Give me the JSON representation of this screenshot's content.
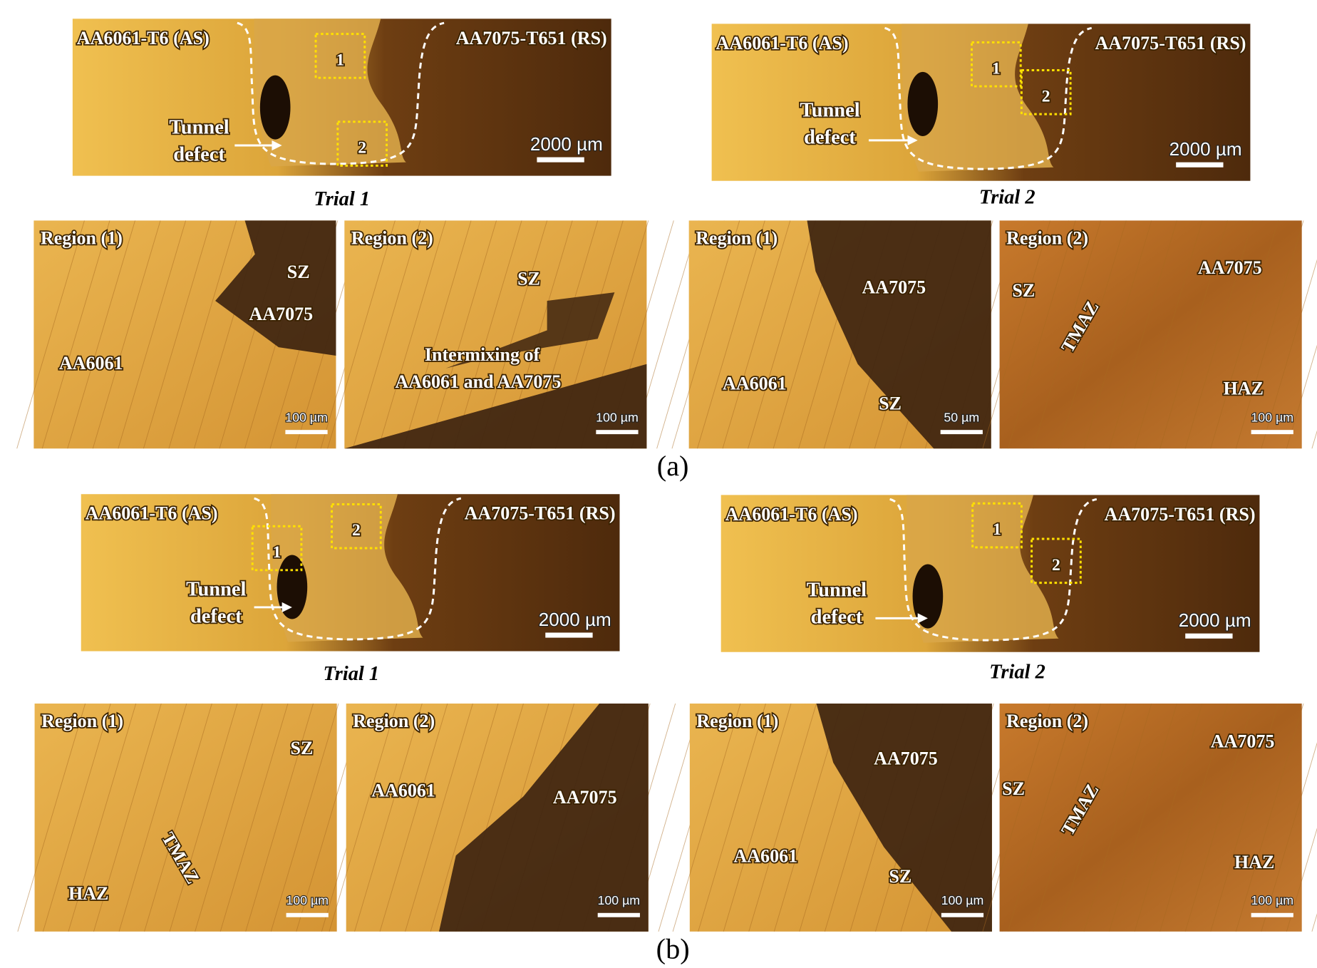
{
  "panels": [
    {
      "label": "(a)",
      "trials": [
        {
          "caption": "Trial 1",
          "macro": {
            "left": "AA6061-T6 (AS)",
            "right": "AA7075-T651 (RS)",
            "defect": [
              "Tunnel",
              "defect"
            ],
            "scale": "2000 µm",
            "boxes": [
              "1",
              "2"
            ]
          },
          "regions": [
            {
              "title": "Region (1)",
              "labels": [
                "SZ",
                "AA7075",
                "AA6061"
              ],
              "scale": "100 µm"
            },
            {
              "title": "Region (2)",
              "labels": [
                "SZ",
                "Intermixing of",
                "AA6061 and AA7075"
              ],
              "scale": "100 µm"
            }
          ]
        },
        {
          "caption": "Trial 2",
          "macro": {
            "left": "AA6061-T6 (AS)",
            "right": "AA7075-T651 (RS)",
            "defect": [
              "Tunnel",
              "defect"
            ],
            "scale": "2000 µm",
            "boxes": [
              "1",
              "2"
            ]
          },
          "regions": [
            {
              "title": "Region (1)",
              "labels": [
                "AA7075",
                "AA6061",
                "SZ"
              ],
              "scale": "50 µm"
            },
            {
              "title": "Region (2)",
              "labels": [
                "AA7075",
                "SZ",
                "TMAZ",
                "HAZ"
              ],
              "scale": "100 µm"
            }
          ]
        }
      ]
    },
    {
      "label": "(b)",
      "trials": [
        {
          "caption": "Trial 1",
          "macro": {
            "left": "AA6061-T6 (AS)",
            "right": "AA7075-T651 (RS)",
            "defect": [
              "Tunnel",
              "defect"
            ],
            "scale": "2000 µm",
            "boxes": [
              "1",
              "2"
            ]
          },
          "regions": [
            {
              "title": "Region (1)",
              "labels": [
                "SZ",
                "TMAZ",
                "HAZ"
              ],
              "scale": "100 µm"
            },
            {
              "title": "Region (2)",
              "labels": [
                "AA6061",
                "AA7075"
              ],
              "scale": "100 µm"
            }
          ]
        },
        {
          "caption": "Trial 2",
          "macro": {
            "left": "AA6061-T6 (AS)",
            "right": "AA7075-T651 (RS)",
            "defect": [
              "Tunnel",
              "defect"
            ],
            "scale": "2000 µm",
            "boxes": [
              "1",
              "2"
            ]
          },
          "regions": [
            {
              "title": "Region (1)",
              "labels": [
                "AA7075",
                "AA6061",
                "SZ"
              ],
              "scale": "100 µm"
            },
            {
              "title": "Region (2)",
              "labels": [
                "AA7075",
                "SZ",
                "TMAZ",
                "HAZ"
              ],
              "scale": "100 µm"
            }
          ]
        }
      ]
    }
  ]
}
